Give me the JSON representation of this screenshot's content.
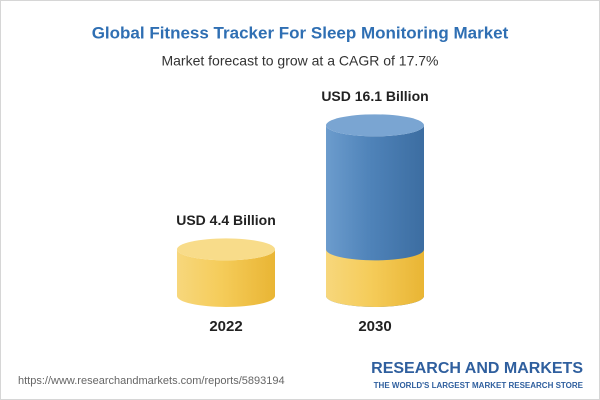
{
  "chart_data": {
    "type": "cylinder",
    "title": "Global Fitness Tracker For Sleep Monitoring Market",
    "subtitle": "Market forecast to grow at a CAGR of 17.7%",
    "categories": [
      "2022",
      "2030"
    ],
    "values": [
      4.4,
      16.1
    ],
    "value_labels": [
      "USD 4.4 Billion",
      "USD 16.1 Billion"
    ],
    "colors": [
      "#f3c34c",
      "#4f83b9"
    ],
    "source": "https://www.researchandmarkets.com/reports/5893194",
    "brand": "RESEARCH AND MARKETS",
    "tagline": "THE WORLD'S LARGEST MARKET RESEARCH STORE"
  }
}
